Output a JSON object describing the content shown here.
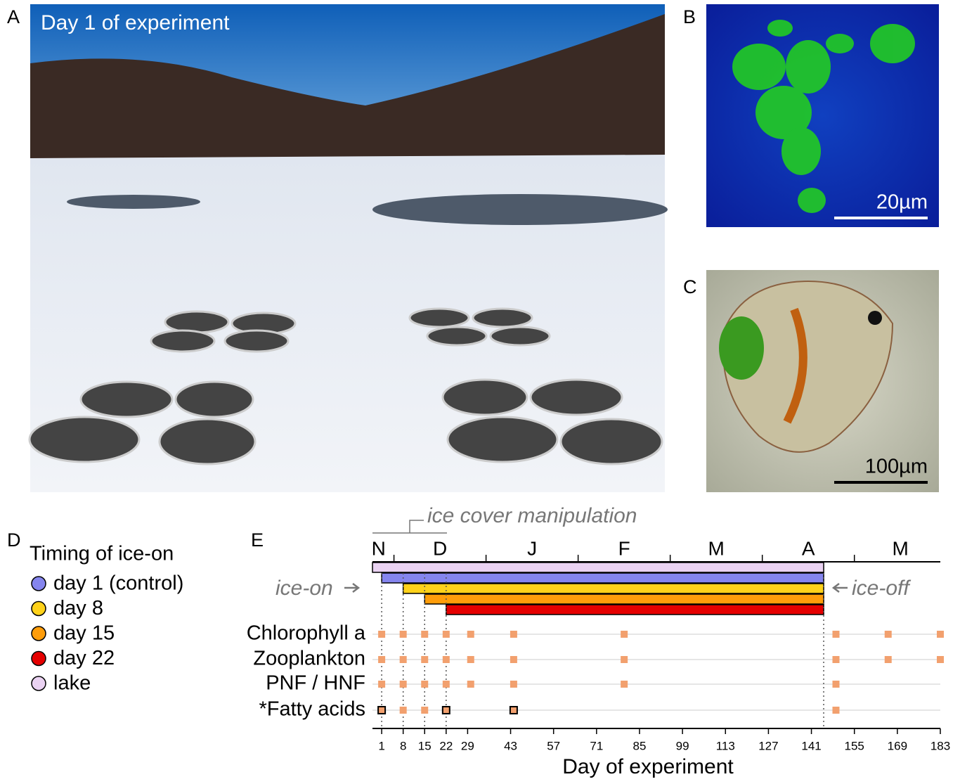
{
  "panels": {
    "a": {
      "label": "A",
      "caption": "Day 1 of experiment"
    },
    "b": {
      "label": "B",
      "scale": "20µm"
    },
    "c": {
      "label": "C",
      "scale": "100µm"
    }
  },
  "legend_panel": {
    "label": "D",
    "title": "Timing of ice-on"
  },
  "chart_data": {
    "type": "timeline",
    "label": "E",
    "xlabel": "Day of experiment",
    "xlim": [
      -2,
      183
    ],
    "xticks": [
      1,
      8,
      15,
      22,
      29,
      43,
      57,
      71,
      85,
      99,
      113,
      127,
      141,
      155,
      169,
      183
    ],
    "months": [
      {
        "value": 0,
        "label": "N"
      },
      {
        "value": 20,
        "label": "D"
      },
      {
        "value": 50,
        "label": "J"
      },
      {
        "value": 80,
        "label": "F"
      },
      {
        "value": 110,
        "label": "M"
      },
      {
        "value": 140,
        "label": "A"
      },
      {
        "value": 170,
        "label": "M"
      }
    ],
    "month_bounds": [
      5,
      35,
      65,
      95,
      125,
      155
    ],
    "annotations": {
      "manipulation": "ice cover manipulation",
      "ice_on": "ice-on",
      "ice_off": "ice-off"
    },
    "series": [
      {
        "name": "lake",
        "color": "#ead2f2",
        "start": -2,
        "end": 145
      },
      {
        "name": "day 1 (control)",
        "color": "#8585ee",
        "start": 1,
        "end": 145
      },
      {
        "name": "day 8",
        "color": "#ffd21a",
        "start": 8,
        "end": 145
      },
      {
        "name": "day 15",
        "color": "#ff9d0a",
        "start": 15,
        "end": 145
      },
      {
        "name": "day 22",
        "color": "#e50000",
        "start": 22,
        "end": 145
      }
    ],
    "legend_order": [
      1,
      2,
      3,
      4,
      0
    ],
    "marker_color": "#f2a06e",
    "rows": [
      {
        "name": "Chlorophyll a",
        "days": [
          1,
          8,
          15,
          22,
          30,
          44,
          80,
          149,
          166,
          183
        ]
      },
      {
        "name": "Zooplankton",
        "days": [
          1,
          8,
          15,
          22,
          30,
          44,
          80,
          149,
          166,
          183
        ]
      },
      {
        "name": "PNF / HNF",
        "days": [
          1,
          8,
          15,
          22,
          30,
          44,
          80,
          149
        ]
      },
      {
        "name": "*Fatty acids",
        "days": [
          1,
          8,
          15,
          22,
          44,
          149
        ],
        "outlined": [
          true,
          false,
          false,
          true,
          true,
          false
        ]
      }
    ]
  }
}
